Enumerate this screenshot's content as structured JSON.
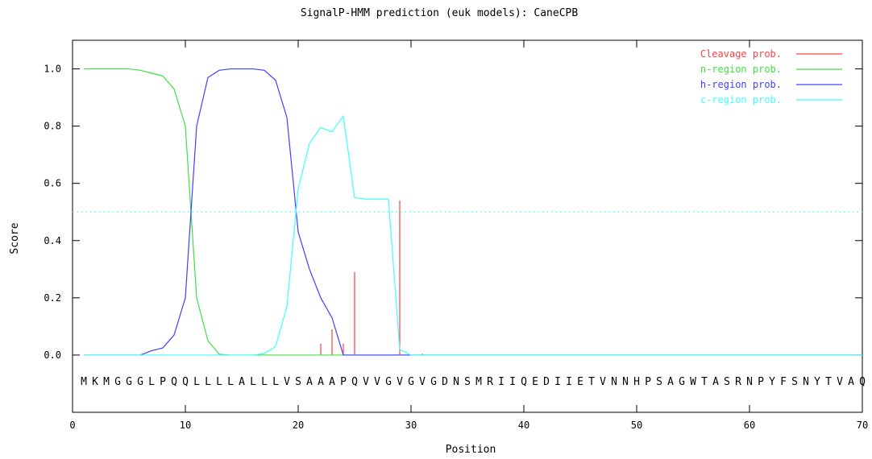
{
  "chart_data": {
    "type": "line",
    "title": "SignalP-HMM prediction (euk models): CaneCPB",
    "xlabel": "Position",
    "ylabel": "Score",
    "xlim": [
      0,
      70
    ],
    "ylim": [
      -0.2,
      1.1
    ],
    "x_ticks": [
      "0",
      "10",
      "20",
      "30",
      "40",
      "50",
      "60",
      "70"
    ],
    "y_ticks": [
      "0.0",
      "0.2",
      "0.4",
      "0.6",
      "0.8",
      "1.0"
    ],
    "threshold": 0.5,
    "sequence": "MKMGGGLPQQLLLLALLLVSAAAPQVVGVGVGDNSMRIIQEDIIETVNNHPSAGWTASRNPYFSNYTVAQ",
    "legend_position": "top-right",
    "series": [
      {
        "name": "Cleavage prob.",
        "kind": "impulse",
        "color": "#ff4040",
        "points": [
          [
            22,
            0.04
          ],
          [
            23,
            0.09
          ],
          [
            24,
            0.04
          ],
          [
            25,
            0.29
          ],
          [
            29,
            0.54
          ],
          [
            31,
            0.005
          ]
        ]
      },
      {
        "name": "n-region prob.",
        "color": "#40e040",
        "points": [
          [
            1,
            1.0
          ],
          [
            2,
            1.0
          ],
          [
            3,
            1.0
          ],
          [
            4,
            1.0
          ],
          [
            5,
            1.0
          ],
          [
            6,
            0.995
          ],
          [
            7,
            0.985
          ],
          [
            8,
            0.975
          ],
          [
            9,
            0.93
          ],
          [
            10,
            0.8
          ],
          [
            11,
            0.2
          ],
          [
            12,
            0.05
          ],
          [
            13,
            0.003
          ],
          [
            14,
            0.0
          ],
          [
            70,
            0.0
          ]
        ]
      },
      {
        "name": "h-region prob.",
        "color": "#4040ff",
        "points": [
          [
            1,
            0.0
          ],
          [
            6,
            0.0
          ],
          [
            7,
            0.015
          ],
          [
            8,
            0.025
          ],
          [
            9,
            0.07
          ],
          [
            10,
            0.2
          ],
          [
            11,
            0.8
          ],
          [
            12,
            0.97
          ],
          [
            13,
            0.995
          ],
          [
            14,
            1.0
          ],
          [
            15,
            1.0
          ],
          [
            16,
            1.0
          ],
          [
            17,
            0.995
          ],
          [
            18,
            0.96
          ],
          [
            19,
            0.83
          ],
          [
            20,
            0.43
          ],
          [
            21,
            0.3
          ],
          [
            22,
            0.2
          ],
          [
            23,
            0.13
          ],
          [
            24,
            0.0
          ],
          [
            70,
            0.0
          ]
        ]
      },
      {
        "name": "c-region prob.",
        "color": "#40ffff",
        "points": [
          [
            1,
            0.0
          ],
          [
            16,
            0.0
          ],
          [
            17,
            0.005
          ],
          [
            18,
            0.03
          ],
          [
            19,
            0.17
          ],
          [
            20,
            0.58
          ],
          [
            21,
            0.74
          ],
          [
            22,
            0.795
          ],
          [
            23,
            0.78
          ],
          [
            24,
            0.835
          ],
          [
            25,
            0.55
          ],
          [
            26,
            0.545
          ],
          [
            27,
            0.545
          ],
          [
            28,
            0.545
          ],
          [
            29,
            0.02
          ],
          [
            30,
            0.0
          ],
          [
            70,
            0.0
          ]
        ]
      }
    ]
  }
}
